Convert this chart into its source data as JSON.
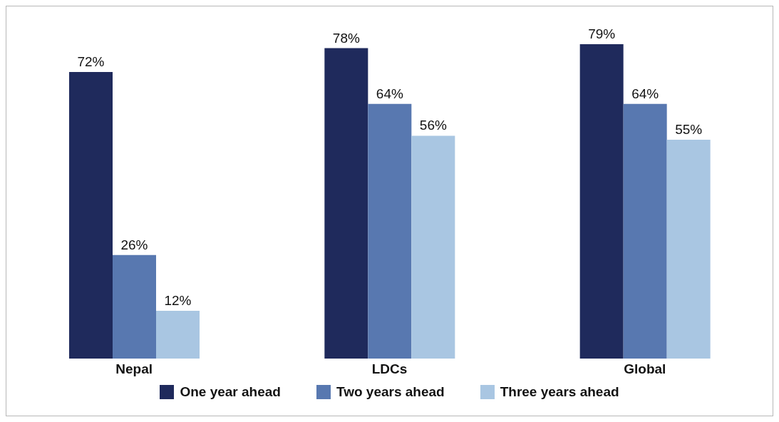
{
  "chart_data": {
    "type": "bar",
    "categories": [
      "Nepal",
      "LDCs",
      "Global"
    ],
    "series": [
      {
        "name": "One year ahead",
        "color": "#1f2a5c",
        "values": [
          72,
          78,
          79
        ],
        "value_labels": [
          "72%",
          "78%",
          "79%"
        ]
      },
      {
        "name": "Two years ahead",
        "color": "#5878b0",
        "values": [
          26,
          64,
          64
        ],
        "value_labels": [
          "26%",
          "64%",
          "64%"
        ]
      },
      {
        "name": "Three years ahead",
        "color": "#a9c6e2",
        "values": [
          12,
          56,
          55
        ],
        "value_labels": [
          "12%",
          "56%",
          "55%"
        ]
      }
    ],
    "legend": "bottom",
    "grid": false
  }
}
